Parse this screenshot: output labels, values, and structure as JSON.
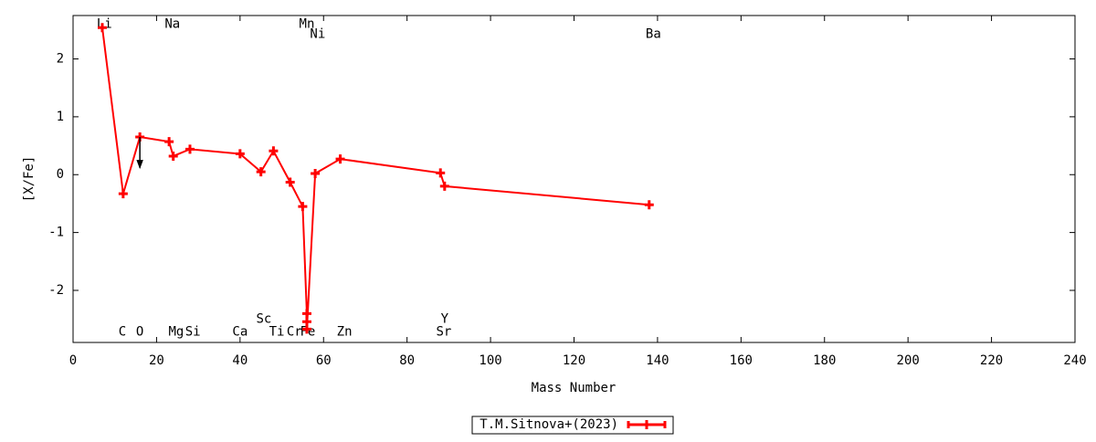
{
  "chart_data": {
    "type": "line",
    "x_label": "Mass Number",
    "y_label": "[X/Fe]",
    "x": [
      7,
      12,
      16,
      23,
      24,
      28,
      40,
      45,
      48,
      52,
      55,
      56,
      56,
      56,
      58,
      64,
      88,
      89,
      138
    ],
    "series": [
      {
        "name": "T.M.Sitnova+(2023)",
        "color": "#ff0000",
        "values": [
          2.54,
          -0.33,
          0.65,
          0.57,
          0.32,
          0.44,
          0.36,
          0.05,
          0.41,
          -0.13,
          -0.55,
          -2.4,
          -2.54,
          -2.67,
          0.02,
          0.27,
          0.03,
          -0.2,
          -0.52
        ]
      }
    ],
    "arrows": [
      {
        "x": 16,
        "from": 0.65,
        "to": 0.12
      }
    ],
    "annotations": [
      {
        "text": "Li",
        "x": 7.5,
        "y": 2.6
      },
      {
        "text": "Na",
        "x": 23.8,
        "y": 2.6
      },
      {
        "text": "Mn",
        "x": 56,
        "y": 2.6
      },
      {
        "text": "Ni",
        "x": 58.6,
        "y": 2.43
      },
      {
        "text": "Ba",
        "x": 139,
        "y": 2.43
      },
      {
        "text": "C",
        "x": 11.8,
        "y": -2.72
      },
      {
        "text": "O",
        "x": 16,
        "y": -2.72
      },
      {
        "text": "Mg",
        "x": 24.7,
        "y": -2.72
      },
      {
        "text": "Si",
        "x": 28.7,
        "y": -2.72
      },
      {
        "text": "Ca",
        "x": 40,
        "y": -2.72
      },
      {
        "text": "Sc",
        "x": 45.7,
        "y": -2.5
      },
      {
        "text": "Ti",
        "x": 48.8,
        "y": -2.72
      },
      {
        "text": "Cr",
        "x": 53,
        "y": -2.72
      },
      {
        "text": "Fe",
        "x": 56.2,
        "y": -2.72
      },
      {
        "text": "Zn",
        "x": 65,
        "y": -2.72
      },
      {
        "text": "Y",
        "x": 89,
        "y": -2.5
      },
      {
        "text": "Sr",
        "x": 88.8,
        "y": -2.72
      }
    ],
    "xlim": [
      0,
      240
    ],
    "xticks": [
      0,
      20,
      40,
      60,
      80,
      100,
      120,
      140,
      160,
      180,
      200,
      220,
      240
    ],
    "ylim": [
      -2.9,
      2.75
    ],
    "yticks": [
      -2,
      -1,
      0,
      1,
      2
    ]
  }
}
